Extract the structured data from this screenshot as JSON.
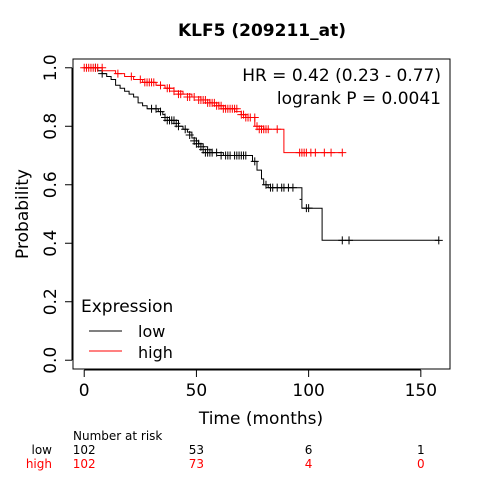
{
  "chart_data": {
    "type": "line",
    "title": "KLF5 (209211_at)",
    "xlabel": "Time (months)",
    "ylabel": "Probability",
    "xlim": [
      -5,
      163
    ],
    "ylim": [
      -0.03,
      1.03
    ],
    "xticks": [
      0,
      50,
      100,
      150
    ],
    "yticks": [
      0.0,
      0.2,
      0.4,
      0.6,
      0.8,
      1.0
    ],
    "xtick_labels": [
      "0",
      "50",
      "100",
      "150"
    ],
    "ytick_labels": [
      "0.0",
      "0.2",
      "0.4",
      "0.6",
      "0.8",
      "1.0"
    ],
    "grid": false,
    "annotations": [
      "HR = 0.42 (0.23 - 0.77)",
      "logrank P = 0.0041"
    ],
    "legend": {
      "title": "Expression",
      "position": "bottom-left"
    },
    "series": [
      {
        "name": "low",
        "color": "#000000",
        "steps": [
          [
            0,
            1.0
          ],
          [
            6,
            0.99
          ],
          [
            8,
            0.98
          ],
          [
            10,
            0.97
          ],
          [
            12,
            0.96
          ],
          [
            14,
            0.94
          ],
          [
            16,
            0.93
          ],
          [
            18,
            0.92
          ],
          [
            20,
            0.91
          ],
          [
            22,
            0.9
          ],
          [
            24,
            0.88
          ],
          [
            26,
            0.87
          ],
          [
            28,
            0.86
          ],
          [
            33,
            0.85
          ],
          [
            35,
            0.84
          ],
          [
            36,
            0.83
          ],
          [
            38,
            0.82
          ],
          [
            42,
            0.8
          ],
          [
            44,
            0.79
          ],
          [
            46,
            0.78
          ],
          [
            48,
            0.76
          ],
          [
            50,
            0.75
          ],
          [
            51,
            0.74
          ],
          [
            53,
            0.73
          ],
          [
            55,
            0.72
          ],
          [
            57,
            0.71
          ],
          [
            62,
            0.7
          ],
          [
            75,
            0.68
          ],
          [
            77,
            0.65
          ],
          [
            79,
            0.62
          ],
          [
            80,
            0.6
          ],
          [
            82,
            0.59
          ],
          [
            97,
            0.55
          ],
          [
            96,
            0.55
          ],
          [
            97,
            0.52
          ],
          [
            106,
            0.41
          ],
          [
            158,
            0.41
          ]
        ],
        "censored": [
          [
            5,
            1.0
          ],
          [
            8,
            0.98
          ],
          [
            30,
            0.86
          ],
          [
            32,
            0.86
          ],
          [
            34,
            0.85
          ],
          [
            36,
            0.83
          ],
          [
            37,
            0.82
          ],
          [
            38,
            0.82
          ],
          [
            39,
            0.82
          ],
          [
            40,
            0.82
          ],
          [
            41,
            0.81
          ],
          [
            42,
            0.8
          ],
          [
            45,
            0.79
          ],
          [
            47,
            0.77
          ],
          [
            49,
            0.75
          ],
          [
            50,
            0.74
          ],
          [
            51,
            0.74
          ],
          [
            52,
            0.73
          ],
          [
            53,
            0.72
          ],
          [
            54,
            0.71
          ],
          [
            55,
            0.71
          ],
          [
            56,
            0.71
          ],
          [
            57,
            0.71
          ],
          [
            59,
            0.71
          ],
          [
            61,
            0.7
          ],
          [
            63,
            0.7
          ],
          [
            64,
            0.7
          ],
          [
            65,
            0.7
          ],
          [
            67,
            0.7
          ],
          [
            68,
            0.7
          ],
          [
            69,
            0.7
          ],
          [
            70,
            0.7
          ],
          [
            71,
            0.7
          ],
          [
            72,
            0.7
          ],
          [
            76,
            0.68
          ],
          [
            81,
            0.6
          ],
          [
            83,
            0.59
          ],
          [
            84,
            0.59
          ],
          [
            86,
            0.59
          ],
          [
            88,
            0.59
          ],
          [
            89,
            0.59
          ],
          [
            91,
            0.59
          ],
          [
            93,
            0.59
          ],
          [
            99,
            0.52
          ],
          [
            100,
            0.52
          ],
          [
            115,
            0.41
          ],
          [
            118,
            0.41
          ],
          [
            158,
            0.41
          ]
        ]
      },
      {
        "name": "high",
        "color": "#ff0000",
        "steps": [
          [
            0,
            1.0
          ],
          [
            8,
            0.99
          ],
          [
            14,
            0.98
          ],
          [
            18,
            0.97
          ],
          [
            22,
            0.96
          ],
          [
            26,
            0.95
          ],
          [
            32,
            0.94
          ],
          [
            36,
            0.93
          ],
          [
            40,
            0.92
          ],
          [
            44,
            0.91
          ],
          [
            48,
            0.9
          ],
          [
            52,
            0.89
          ],
          [
            56,
            0.88
          ],
          [
            60,
            0.87
          ],
          [
            63,
            0.86
          ],
          [
            67,
            0.85
          ],
          [
            70,
            0.84
          ],
          [
            72,
            0.83
          ],
          [
            76,
            0.8
          ],
          [
            80,
            0.79
          ],
          [
            89,
            0.71
          ],
          [
            115,
            0.71
          ]
        ],
        "censored": [
          [
            0,
            1.0
          ],
          [
            1,
            1.0
          ],
          [
            2,
            1.0
          ],
          [
            3,
            1.0
          ],
          [
            4,
            1.0
          ],
          [
            5,
            1.0
          ],
          [
            6,
            1.0
          ],
          [
            8,
            1.0
          ],
          [
            15,
            0.98
          ],
          [
            21,
            0.97
          ],
          [
            25,
            0.96
          ],
          [
            27,
            0.95
          ],
          [
            28,
            0.95
          ],
          [
            29,
            0.95
          ],
          [
            30,
            0.95
          ],
          [
            31,
            0.95
          ],
          [
            34,
            0.94
          ],
          [
            37,
            0.93
          ],
          [
            38,
            0.93
          ],
          [
            40,
            0.92
          ],
          [
            42,
            0.91
          ],
          [
            43,
            0.91
          ],
          [
            46,
            0.9
          ],
          [
            47,
            0.9
          ],
          [
            49,
            0.9
          ],
          [
            51,
            0.89
          ],
          [
            52,
            0.89
          ],
          [
            53,
            0.89
          ],
          [
            54,
            0.89
          ],
          [
            55,
            0.88
          ],
          [
            56,
            0.88
          ],
          [
            57,
            0.88
          ],
          [
            58,
            0.88
          ],
          [
            59,
            0.87
          ],
          [
            60,
            0.87
          ],
          [
            61,
            0.87
          ],
          [
            62,
            0.86
          ],
          [
            63,
            0.86
          ],
          [
            64,
            0.86
          ],
          [
            65,
            0.86
          ],
          [
            66,
            0.86
          ],
          [
            67,
            0.86
          ],
          [
            68,
            0.86
          ],
          [
            70,
            0.84
          ],
          [
            71,
            0.84
          ],
          [
            72,
            0.83
          ],
          [
            73,
            0.83
          ],
          [
            74,
            0.83
          ],
          [
            76,
            0.83
          ],
          [
            77,
            0.8
          ],
          [
            78,
            0.79
          ],
          [
            79,
            0.79
          ],
          [
            80,
            0.79
          ],
          [
            81,
            0.79
          ],
          [
            82,
            0.79
          ],
          [
            86,
            0.79
          ],
          [
            96,
            0.71
          ],
          [
            97,
            0.71
          ],
          [
            98,
            0.71
          ],
          [
            99,
            0.71
          ],
          [
            101,
            0.71
          ],
          [
            103,
            0.71
          ],
          [
            107,
            0.71
          ],
          [
            110,
            0.71
          ],
          [
            115,
            0.71
          ]
        ]
      }
    ],
    "risk_table": {
      "title": "Number at risk",
      "times": [
        0,
        50,
        100,
        150
      ],
      "rows": [
        {
          "name": "low",
          "color": "#000000",
          "values": [
            "102",
            "53",
            "6",
            "1"
          ]
        },
        {
          "name": "high",
          "color": "#ff0000",
          "values": [
            "102",
            "73",
            "4",
            "0"
          ]
        }
      ]
    }
  }
}
